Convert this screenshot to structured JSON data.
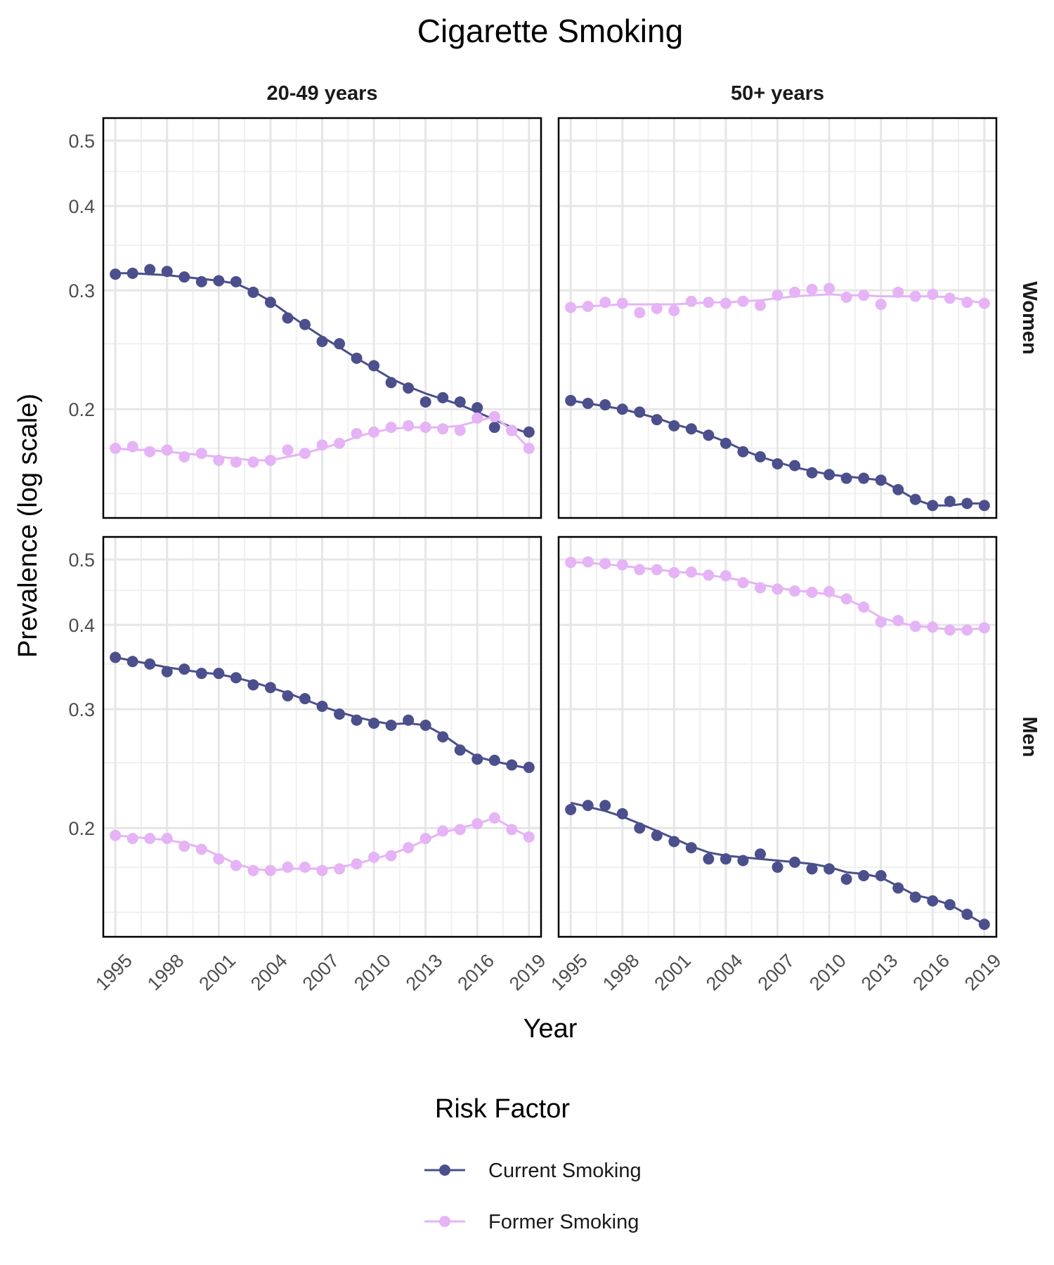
{
  "chart_data": {
    "type": "line",
    "title": "Cigarette Smoking",
    "xlabel": "Year",
    "ylabel": "Prevalence (log scale)",
    "y_scale": "log",
    "ylim": [
      0.138,
      0.54
    ],
    "y_ticks": [
      0.2,
      0.3,
      0.4,
      0.5
    ],
    "y_tick_labels": [
      "0.2",
      "0.3",
      "0.4",
      "0.5"
    ],
    "x_ticks": [
      1995,
      1998,
      2001,
      2004,
      2007,
      2010,
      2013,
      2016,
      2019
    ],
    "x_tick_labels": [
      "1995",
      "1998",
      "2001",
      "2004",
      "2007",
      "2010",
      "2013",
      "2016",
      "2019"
    ],
    "grid": true,
    "facet_columns": [
      "20-49 years",
      "50+ years"
    ],
    "facet_rows": [
      "Women",
      "Men"
    ],
    "legend": {
      "title": "Risk Factor",
      "position": "bottom",
      "entries": [
        {
          "label": "Current Smoking",
          "color": "#4b4f8c"
        },
        {
          "label": "Former Smoking",
          "color": "#e5b3f6"
        }
      ]
    },
    "x": [
      1995,
      1996,
      1997,
      1998,
      1999,
      2000,
      2001,
      2002,
      2003,
      2004,
      2005,
      2006,
      2007,
      2008,
      2009,
      2010,
      2011,
      2012,
      2013,
      2014,
      2015,
      2016,
      2017,
      2018,
      2019
    ],
    "panels": [
      {
        "column": "20-49 years",
        "row": "Women",
        "series": [
          {
            "name": "Current Smoking",
            "points": [
              0.317,
              0.318,
              0.322,
              0.32,
              0.314,
              0.309,
              0.31,
              0.309,
              0.298,
              0.288,
              0.273,
              0.267,
              0.252,
              0.25,
              0.238,
              0.232,
              0.219,
              0.215,
              0.205,
              0.208,
              0.205,
              0.201,
              0.188,
              0.186,
              0.185
            ],
            "trend": [
              0.318,
              0.318,
              0.317,
              0.316,
              0.314,
              0.312,
              0.31,
              0.307,
              0.299,
              0.289,
              0.277,
              0.266,
              0.256,
              0.247,
              0.238,
              0.23,
              0.222,
              0.216,
              0.211,
              0.207,
              0.203,
              0.198,
              0.193,
              0.188,
              0.184
            ]
          },
          {
            "name": "Former Smoking",
            "points": [
              0.175,
              0.176,
              0.173,
              0.174,
              0.17,
              0.172,
              0.168,
              0.167,
              0.167,
              0.168,
              0.174,
              0.172,
              0.177,
              0.178,
              0.184,
              0.185,
              0.188,
              0.189,
              0.188,
              0.187,
              0.186,
              0.194,
              0.195,
              0.186,
              0.175
            ],
            "trend": [
              0.175,
              0.174,
              0.174,
              0.173,
              0.172,
              0.171,
              0.17,
              0.169,
              0.168,
              0.168,
              0.17,
              0.172,
              0.175,
              0.178,
              0.182,
              0.185,
              0.187,
              0.188,
              0.188,
              0.188,
              0.189,
              0.192,
              0.195,
              0.186,
              0.175
            ]
          }
        ]
      },
      {
        "column": "50+ years",
        "row": "Women",
        "series": [
          {
            "name": "Current Smoking",
            "points": [
              0.206,
              0.204,
              0.203,
              0.2,
              0.198,
              0.193,
              0.189,
              0.187,
              0.183,
              0.178,
              0.173,
              0.17,
              0.166,
              0.165,
              0.161,
              0.16,
              0.158,
              0.158,
              0.157,
              0.152,
              0.147,
              0.144,
              0.146,
              0.145,
              0.144
            ],
            "trend": [
              0.206,
              0.204,
              0.202,
              0.2,
              0.197,
              0.194,
              0.19,
              0.187,
              0.183,
              0.179,
              0.174,
              0.17,
              0.167,
              0.164,
              0.162,
              0.16,
              0.159,
              0.158,
              0.157,
              0.152,
              0.147,
              0.144,
              0.144,
              0.145,
              0.145
            ]
          },
          {
            "name": "Former Smoking",
            "points": [
              0.283,
              0.284,
              0.288,
              0.287,
              0.278,
              0.282,
              0.28,
              0.289,
              0.288,
              0.287,
              0.289,
              0.285,
              0.295,
              0.298,
              0.301,
              0.302,
              0.293,
              0.295,
              0.286,
              0.298,
              0.294,
              0.296,
              0.292,
              0.288,
              0.287
            ],
            "trend": [
              0.283,
              0.284,
              0.285,
              0.286,
              0.286,
              0.286,
              0.286,
              0.287,
              0.288,
              0.288,
              0.289,
              0.29,
              0.292,
              0.294,
              0.295,
              0.296,
              0.295,
              0.295,
              0.294,
              0.294,
              0.294,
              0.294,
              0.293,
              0.29,
              0.287
            ]
          }
        ]
      },
      {
        "column": "20-49 years",
        "row": "Men",
        "series": [
          {
            "name": "Current Smoking",
            "points": [
              0.358,
              0.353,
              0.35,
              0.341,
              0.344,
              0.339,
              0.339,
              0.334,
              0.326,
              0.323,
              0.314,
              0.311,
              0.303,
              0.295,
              0.289,
              0.286,
              0.284,
              0.289,
              0.284,
              0.273,
              0.261,
              0.253,
              0.252,
              0.248,
              0.246
            ],
            "trend": [
              0.358,
              0.354,
              0.35,
              0.346,
              0.343,
              0.34,
              0.338,
              0.334,
              0.329,
              0.323,
              0.317,
              0.31,
              0.303,
              0.297,
              0.292,
              0.288,
              0.285,
              0.286,
              0.284,
              0.275,
              0.264,
              0.255,
              0.251,
              0.248,
              0.245
            ]
          },
          {
            "name": "Former Smoking",
            "points": [
              0.195,
              0.193,
              0.193,
              0.193,
              0.188,
              0.186,
              0.18,
              0.176,
              0.173,
              0.173,
              0.175,
              0.175,
              0.173,
              0.174,
              0.177,
              0.181,
              0.182,
              0.187,
              0.193,
              0.198,
              0.199,
              0.203,
              0.207,
              0.199,
              0.194
            ],
            "trend": [
              0.195,
              0.194,
              0.193,
              0.192,
              0.19,
              0.187,
              0.182,
              0.177,
              0.174,
              0.173,
              0.174,
              0.174,
              0.174,
              0.175,
              0.177,
              0.18,
              0.183,
              0.187,
              0.192,
              0.197,
              0.2,
              0.203,
              0.207,
              0.2,
              0.194
            ]
          }
        ]
      },
      {
        "column": "50+ years",
        "row": "Men",
        "series": [
          {
            "name": "Current Smoking",
            "points": [
              0.213,
              0.216,
              0.216,
              0.21,
              0.2,
              0.195,
              0.191,
              0.187,
              0.18,
              0.18,
              0.179,
              0.183,
              0.175,
              0.178,
              0.174,
              0.174,
              0.168,
              0.17,
              0.17,
              0.163,
              0.158,
              0.156,
              0.154,
              0.149,
              0.144
            ],
            "trend": [
              0.218,
              0.215,
              0.212,
              0.208,
              0.203,
              0.198,
              0.193,
              0.188,
              0.184,
              0.182,
              0.181,
              0.18,
              0.179,
              0.178,
              0.177,
              0.175,
              0.172,
              0.171,
              0.169,
              0.164,
              0.159,
              0.157,
              0.154,
              0.149,
              0.144
            ]
          },
          {
            "name": "Former Smoking",
            "points": [
              0.495,
              0.496,
              0.493,
              0.491,
              0.483,
              0.483,
              0.478,
              0.479,
              0.474,
              0.473,
              0.462,
              0.454,
              0.452,
              0.449,
              0.447,
              0.448,
              0.437,
              0.425,
              0.404,
              0.406,
              0.398,
              0.397,
              0.393,
              0.393,
              0.396
            ],
            "trend": [
              0.496,
              0.494,
              0.492,
              0.489,
              0.486,
              0.483,
              0.48,
              0.477,
              0.474,
              0.47,
              0.465,
              0.459,
              0.454,
              0.45,
              0.447,
              0.444,
              0.437,
              0.425,
              0.41,
              0.403,
              0.399,
              0.396,
              0.394,
              0.394,
              0.395
            ]
          }
        ]
      }
    ]
  }
}
